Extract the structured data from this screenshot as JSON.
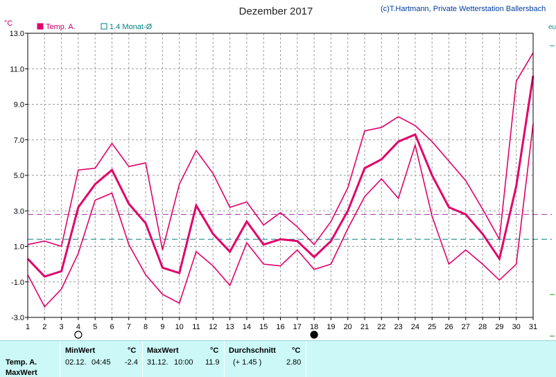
{
  "header": {
    "title": "Dezember 2017",
    "credit": "(c)T.Hartmann, Private Wetterstation Ballersbach",
    "unit": "°C",
    "right_edge_text": "eu"
  },
  "legend": [
    {
      "label": "Temp. A.",
      "color": "#e0006a",
      "filled": true
    },
    {
      "label": "1.4 Monat-Ø",
      "color": "#008080",
      "filled": false
    }
  ],
  "colors": {
    "series": "#e0006a",
    "month_avg_line": "#008080",
    "avg_line": "#a030a0",
    "grid": "#9a9a9a",
    "axis": "#000000",
    "panel_bg": "#ccf8f8"
  },
  "chart_data": {
    "type": "line",
    "title": "Dezember 2017",
    "ylabel": "°C",
    "x": [
      1,
      2,
      3,
      4,
      5,
      6,
      7,
      8,
      9,
      10,
      11,
      12,
      13,
      14,
      15,
      16,
      17,
      18,
      19,
      20,
      21,
      22,
      23,
      24,
      25,
      26,
      27,
      28,
      29,
      30,
      31
    ],
    "xlim": [
      1,
      31
    ],
    "ylim": [
      -3.0,
      13.0
    ],
    "yticks": [
      -3.0,
      -1.0,
      1.0,
      3.0,
      5.0,
      7.0,
      9.0,
      11.0,
      13.0
    ],
    "ytick_labels": [
      "-3.0",
      "-1.0",
      "1.0",
      "3.0",
      "5.0",
      "7.0",
      "9.0",
      "11.0",
      "13.0"
    ],
    "grid": true,
    "legend_position": "top-left",
    "series": [
      {
        "name": "",
        "role": "max",
        "values": [
          1.1,
          1.3,
          1.0,
          5.3,
          5.4,
          6.8,
          5.5,
          5.7,
          0.8,
          4.5,
          6.4,
          5.1,
          3.2,
          3.5,
          2.2,
          2.9,
          2.1,
          1.1,
          2.4,
          4.3,
          7.5,
          7.7,
          8.3,
          7.8,
          6.9,
          5.8,
          4.7,
          3.1,
          1.4,
          10.3,
          11.9
        ]
      },
      {
        "name": "",
        "role": "mean",
        "values": [
          0.3,
          -0.7,
          -0.4,
          3.2,
          4.5,
          5.3,
          3.4,
          2.3,
          -0.2,
          -0.5,
          3.3,
          1.7,
          0.7,
          2.4,
          1.1,
          1.4,
          1.3,
          0.4,
          1.3,
          3.0,
          5.4,
          5.9,
          6.9,
          7.3,
          5.0,
          3.2,
          2.8,
          1.7,
          0.3,
          4.4,
          10.6
        ]
      },
      {
        "name": "",
        "role": "min",
        "values": [
          -0.6,
          -2.4,
          -1.4,
          0.6,
          3.6,
          4.0,
          1.1,
          -0.6,
          -1.7,
          -2.2,
          0.7,
          -0.1,
          -1.2,
          1.2,
          0.0,
          -0.1,
          0.8,
          -0.3,
          0.0,
          2.0,
          3.8,
          4.8,
          3.7,
          6.7,
          2.7,
          0.0,
          0.8,
          0.0,
          -0.9,
          0.0,
          7.9
        ]
      }
    ],
    "reference_lines": [
      {
        "name": "",
        "value": 2.8,
        "color": "#a030a0",
        "style": "dashed"
      },
      {
        "name": "",
        "value": 1.4,
        "color": "#008080",
        "style": "dashed"
      }
    ],
    "markers": [
      {
        "day": 4,
        "symbol": "open-circle"
      },
      {
        "day": 18,
        "symbol": "filled-circle"
      }
    ]
  },
  "stats": {
    "row_label": "Temp. A.",
    "row_label2": "MaxWert",
    "min": {
      "header": "MinWert",
      "unit": "°C",
      "date": "02.12.",
      "time": "04:45",
      "value": "-2.4"
    },
    "max": {
      "header": "MaxWert",
      "unit": "°C",
      "date": "31.12.",
      "time": "10:00",
      "value": "11.9"
    },
    "avg": {
      "header": "Durchschnitt",
      "unit": "°C",
      "delta": "(+ 1.45 )",
      "value": "2.80"
    }
  }
}
